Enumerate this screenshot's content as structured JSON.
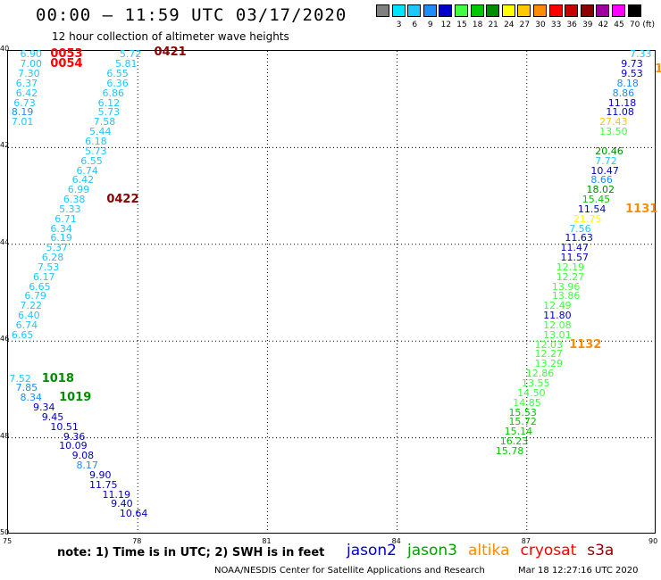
{
  "header": {
    "title": "00:00 – 11:59 UTC 03/17/2020",
    "subtitle": "12 hour collection of altimeter wave heights"
  },
  "color_scale": {
    "unit": "(ft)",
    "bins": [
      {
        "label": "",
        "color": "#808080"
      },
      {
        "label": "3",
        "color": "#00e5ff"
      },
      {
        "label": "6",
        "color": "#1ec8ff"
      },
      {
        "label": "9",
        "color": "#1e8cff"
      },
      {
        "label": "12",
        "color": "#0000c8"
      },
      {
        "label": "15",
        "color": "#40ff40"
      },
      {
        "label": "18",
        "color": "#00c800"
      },
      {
        "label": "21",
        "color": "#008c00"
      },
      {
        "label": "24",
        "color": "#ffff00"
      },
      {
        "label": "27",
        "color": "#ffc800"
      },
      {
        "label": "30",
        "color": "#ff8c00"
      },
      {
        "label": "33",
        "color": "#ff0000"
      },
      {
        "label": "36",
        "color": "#c80000"
      },
      {
        "label": "39",
        "color": "#8c0000"
      },
      {
        "label": "42",
        "color": "#a000a0"
      },
      {
        "label": "45",
        "color": "#ff00ff"
      },
      {
        "label": "70",
        "color": "#000000"
      }
    ]
  },
  "chart_data": {
    "type": "scatter",
    "title": "00:00 – 11:59 UTC 03/17/2020",
    "subtitle": "12 hour collection of altimeter wave heights",
    "xlim": [
      75,
      90
    ],
    "ylim": [
      50,
      40
    ],
    "x_ticks": [
      "75",
      "78",
      "81",
      "84",
      "87",
      "90"
    ],
    "y_ticks": [
      "40",
      "42",
      "44",
      "46",
      "48",
      "50"
    ],
    "grid": true,
    "value_labels": [
      {
        "x": 75.3,
        "y": 40.1,
        "text": "6.90",
        "color": "#1ec8ff"
      },
      {
        "x": 75.3,
        "y": 40.3,
        "text": "7.00",
        "color": "#1ec8ff"
      },
      {
        "x": 75.25,
        "y": 40.5,
        "text": "7.30",
        "color": "#1ec8ff"
      },
      {
        "x": 75.2,
        "y": 40.7,
        "text": "6.37",
        "color": "#1ec8ff"
      },
      {
        "x": 75.2,
        "y": 40.9,
        "text": "6.42",
        "color": "#1ec8ff"
      },
      {
        "x": 75.15,
        "y": 41.1,
        "text": "6.73",
        "color": "#1ec8ff"
      },
      {
        "x": 75.1,
        "y": 41.3,
        "text": "8.19",
        "color": "#1e8cff"
      },
      {
        "x": 75.1,
        "y": 41.5,
        "text": "7.01",
        "color": "#1ec8ff"
      },
      {
        "x": 77.6,
        "y": 40.1,
        "text": "5.72",
        "color": "#1ec8ff"
      },
      {
        "x": 77.5,
        "y": 40.3,
        "text": "5.81",
        "color": "#1ec8ff"
      },
      {
        "x": 77.3,
        "y": 40.5,
        "text": "6.55",
        "color": "#1ec8ff"
      },
      {
        "x": 77.3,
        "y": 40.7,
        "text": "6.36",
        "color": "#1ec8ff"
      },
      {
        "x": 77.2,
        "y": 40.9,
        "text": "6.86",
        "color": "#1ec8ff"
      },
      {
        "x": 77.1,
        "y": 41.1,
        "text": "6.12",
        "color": "#1ec8ff"
      },
      {
        "x": 77.1,
        "y": 41.3,
        "text": "5.73",
        "color": "#1ec8ff"
      },
      {
        "x": 77.0,
        "y": 41.5,
        "text": "7.58",
        "color": "#1ec8ff"
      },
      {
        "x": 76.9,
        "y": 41.7,
        "text": "5.44",
        "color": "#1ec8ff"
      },
      {
        "x": 76.8,
        "y": 41.9,
        "text": "6.18",
        "color": "#1ec8ff"
      },
      {
        "x": 76.8,
        "y": 42.1,
        "text": "5.73",
        "color": "#1ec8ff"
      },
      {
        "x": 76.7,
        "y": 42.3,
        "text": "6.55",
        "color": "#1ec8ff"
      },
      {
        "x": 76.6,
        "y": 42.5,
        "text": "6.74",
        "color": "#1ec8ff"
      },
      {
        "x": 76.5,
        "y": 42.7,
        "text": "6.42",
        "color": "#1ec8ff"
      },
      {
        "x": 76.4,
        "y": 42.9,
        "text": "6.99",
        "color": "#1ec8ff"
      },
      {
        "x": 76.3,
        "y": 43.1,
        "text": "6.38",
        "color": "#1ec8ff"
      },
      {
        "x": 76.2,
        "y": 43.3,
        "text": "5.33",
        "color": "#1ec8ff"
      },
      {
        "x": 76.1,
        "y": 43.5,
        "text": "6.71",
        "color": "#1ec8ff"
      },
      {
        "x": 76.0,
        "y": 43.7,
        "text": "6.34",
        "color": "#1ec8ff"
      },
      {
        "x": 76.0,
        "y": 43.9,
        "text": "6.19",
        "color": "#1ec8ff"
      },
      {
        "x": 75.9,
        "y": 44.1,
        "text": "5.37",
        "color": "#1ec8ff"
      },
      {
        "x": 75.8,
        "y": 44.3,
        "text": "6.28",
        "color": "#1ec8ff"
      },
      {
        "x": 75.7,
        "y": 44.5,
        "text": "7.53",
        "color": "#1ec8ff"
      },
      {
        "x": 75.6,
        "y": 44.7,
        "text": "6.17",
        "color": "#1ec8ff"
      },
      {
        "x": 75.5,
        "y": 44.9,
        "text": "6.65",
        "color": "#1ec8ff"
      },
      {
        "x": 75.4,
        "y": 45.1,
        "text": "6.79",
        "color": "#1ec8ff"
      },
      {
        "x": 75.3,
        "y": 45.3,
        "text": "7.22",
        "color": "#1ec8ff"
      },
      {
        "x": 75.25,
        "y": 45.5,
        "text": "6.40",
        "color": "#1ec8ff"
      },
      {
        "x": 75.2,
        "y": 45.7,
        "text": "6.74",
        "color": "#1ec8ff"
      },
      {
        "x": 75.1,
        "y": 45.9,
        "text": "6.65",
        "color": "#1ec8ff"
      },
      {
        "x": 75.05,
        "y": 46.8,
        "text": "7.52",
        "color": "#1ec8ff"
      },
      {
        "x": 75.2,
        "y": 47.0,
        "text": "7.85",
        "color": "#1e8cff"
      },
      {
        "x": 75.3,
        "y": 47.2,
        "text": "8.34",
        "color": "#1e8cff"
      },
      {
        "x": 75.6,
        "y": 47.4,
        "text": "9.34",
        "color": "#0000c8"
      },
      {
        "x": 75.8,
        "y": 47.6,
        "text": "9.45",
        "color": "#0000c8"
      },
      {
        "x": 76.0,
        "y": 47.8,
        "text": "10.51",
        "color": "#0000c8"
      },
      {
        "x": 76.3,
        "y": 48.0,
        "text": "9.36",
        "color": "#0000c8"
      },
      {
        "x": 76.2,
        "y": 48.2,
        "text": "10.09",
        "color": "#0000c8"
      },
      {
        "x": 76.5,
        "y": 48.4,
        "text": "9.08",
        "color": "#0000c8"
      },
      {
        "x": 76.6,
        "y": 48.6,
        "text": "8.17",
        "color": "#1e8cff"
      },
      {
        "x": 76.9,
        "y": 48.8,
        "text": "9.90",
        "color": "#0000c8"
      },
      {
        "x": 76.9,
        "y": 49.0,
        "text": "11.75",
        "color": "#0000c8"
      },
      {
        "x": 77.2,
        "y": 49.2,
        "text": "11.19",
        "color": "#0000c8"
      },
      {
        "x": 77.4,
        "y": 49.4,
        "text": "9.40",
        "color": "#0000c8"
      },
      {
        "x": 77.6,
        "y": 49.6,
        "text": "10.64",
        "color": "#0000c8"
      },
      {
        "x": 89.4,
        "y": 40.1,
        "text": "7.33",
        "color": "#1ec8ff"
      },
      {
        "x": 89.2,
        "y": 40.3,
        "text": "9.73",
        "color": "#0000c8"
      },
      {
        "x": 89.2,
        "y": 40.5,
        "text": "9.53",
        "color": "#0000c8"
      },
      {
        "x": 89.1,
        "y": 40.7,
        "text": "8.18",
        "color": "#1e8cff"
      },
      {
        "x": 89.0,
        "y": 40.9,
        "text": "8.86",
        "color": "#1e8cff"
      },
      {
        "x": 88.9,
        "y": 41.1,
        "text": "11.18",
        "color": "#0000c8"
      },
      {
        "x": 88.85,
        "y": 41.3,
        "text": "11.08",
        "color": "#0000c8"
      },
      {
        "x": 88.7,
        "y": 41.5,
        "text": "27.43",
        "color": "#ffc800"
      },
      {
        "x": 88.7,
        "y": 41.7,
        "text": "13.50",
        "color": "#40ff40"
      },
      {
        "x": 88.6,
        "y": 42.1,
        "text": "20.46",
        "color": "#008c00"
      },
      {
        "x": 88.6,
        "y": 42.3,
        "text": "7.72",
        "color": "#1ec8ff"
      },
      {
        "x": 88.5,
        "y": 42.5,
        "text": "10.47",
        "color": "#0000c8"
      },
      {
        "x": 88.5,
        "y": 42.7,
        "text": "8.66",
        "color": "#1e8cff"
      },
      {
        "x": 88.4,
        "y": 42.9,
        "text": "18.02",
        "color": "#008c00"
      },
      {
        "x": 88.3,
        "y": 43.1,
        "text": "15.45",
        "color": "#00c800"
      },
      {
        "x": 88.2,
        "y": 43.3,
        "text": "11.54",
        "color": "#0000c8"
      },
      {
        "x": 88.1,
        "y": 43.5,
        "text": "21.75",
        "color": "#ffff00"
      },
      {
        "x": 88.0,
        "y": 43.7,
        "text": "7.56",
        "color": "#1ec8ff"
      },
      {
        "x": 87.9,
        "y": 43.9,
        "text": "11.63",
        "color": "#0000c8"
      },
      {
        "x": 87.8,
        "y": 44.1,
        "text": "11.47",
        "color": "#0000c8"
      },
      {
        "x": 87.8,
        "y": 44.3,
        "text": "11.57",
        "color": "#0000c8"
      },
      {
        "x": 87.7,
        "y": 44.5,
        "text": "12.19",
        "color": "#40ff40"
      },
      {
        "x": 87.7,
        "y": 44.7,
        "text": "12.27",
        "color": "#40ff40"
      },
      {
        "x": 87.6,
        "y": 44.9,
        "text": "13.96",
        "color": "#40ff40"
      },
      {
        "x": 87.6,
        "y": 45.1,
        "text": "13.86",
        "color": "#40ff40"
      },
      {
        "x": 87.4,
        "y": 45.3,
        "text": "12.49",
        "color": "#40ff40"
      },
      {
        "x": 87.4,
        "y": 45.5,
        "text": "11.80",
        "color": "#0000c8"
      },
      {
        "x": 87.4,
        "y": 45.7,
        "text": "12.08",
        "color": "#40ff40"
      },
      {
        "x": 87.4,
        "y": 45.9,
        "text": "13.01",
        "color": "#40ff40"
      },
      {
        "x": 87.2,
        "y": 46.1,
        "text": "12.03",
        "color": "#40ff40"
      },
      {
        "x": 87.2,
        "y": 46.3,
        "text": "12.27",
        "color": "#40ff40"
      },
      {
        "x": 87.2,
        "y": 46.5,
        "text": "13.29",
        "color": "#40ff40"
      },
      {
        "x": 87.0,
        "y": 46.7,
        "text": "12.86",
        "color": "#40ff40"
      },
      {
        "x": 86.9,
        "y": 46.9,
        "text": "13.55",
        "color": "#40ff40"
      },
      {
        "x": 86.8,
        "y": 47.1,
        "text": "14.50",
        "color": "#40ff40"
      },
      {
        "x": 86.7,
        "y": 47.3,
        "text": "14.85",
        "color": "#40ff40"
      },
      {
        "x": 86.6,
        "y": 47.5,
        "text": "15.53",
        "color": "#00c800"
      },
      {
        "x": 86.6,
        "y": 47.7,
        "text": "15.72",
        "color": "#00c800"
      },
      {
        "x": 86.5,
        "y": 47.9,
        "text": "15.14",
        "color": "#00c800"
      },
      {
        "x": 86.4,
        "y": 48.1,
        "text": "16.23",
        "color": "#00c800"
      },
      {
        "x": 86.3,
        "y": 48.3,
        "text": "15.78",
        "color": "#00c800"
      }
    ],
    "time_labels": [
      {
        "x": 76.0,
        "y": 40.1,
        "text": "0053",
        "color": "#ff0000"
      },
      {
        "x": 76.0,
        "y": 40.3,
        "text": "0054",
        "color": "#ff0000"
      },
      {
        "x": 78.4,
        "y": 40.05,
        "text": "0421",
        "color": "#8c0000"
      },
      {
        "x": 77.3,
        "y": 43.1,
        "text": "0422",
        "color": "#8c0000"
      },
      {
        "x": 75.8,
        "y": 46.8,
        "text": "1018",
        "color": "#008c00"
      },
      {
        "x": 76.2,
        "y": 47.2,
        "text": "1019",
        "color": "#008c00"
      },
      {
        "x": 89.3,
        "y": 43.3,
        "text": "1131",
        "color": "#ff8c00"
      },
      {
        "x": 88.0,
        "y": 46.1,
        "text": "1132",
        "color": "#ff8c00"
      },
      {
        "x": 90.05,
        "y": 40.4,
        "text": "1",
        "color": "#ff8c00"
      }
    ]
  },
  "note": "note:  1) Time is in UTC;  2) SWH is in feet",
  "legend": [
    {
      "label": "jason2",
      "color": "#0000c8"
    },
    {
      "label": "jason3",
      "color": "#00a000"
    },
    {
      "label": "altika",
      "color": "#ff8c00"
    },
    {
      "label": "cryosat",
      "color": "#ff0000"
    },
    {
      "label": "s3a",
      "color": "#8c0000"
    }
  ],
  "footer": {
    "credit": "NOAA/NESDIS Center for Satellite Applications and Research",
    "timestamp": "Mar 18 12:27:16 UTC 2020"
  }
}
